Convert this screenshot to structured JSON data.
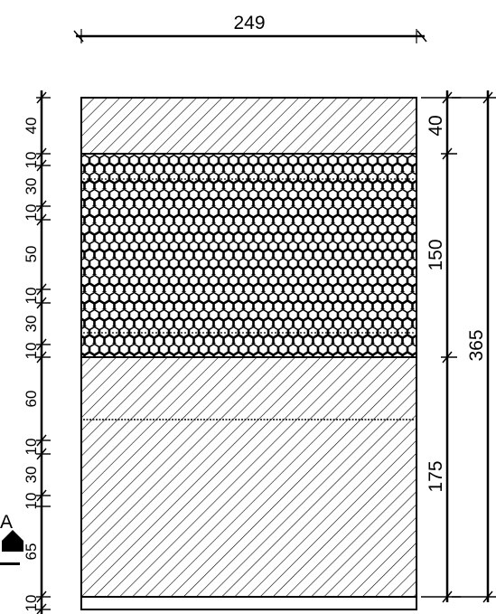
{
  "section_marker": "A",
  "top_dimension": "249",
  "left_dimensions": [
    "40",
    "10",
    "30",
    "10",
    "50",
    "10",
    "30",
    "10",
    "60",
    "10",
    "30",
    "10",
    "65",
    "10"
  ],
  "right_inner_dimensions": [
    "40",
    "150",
    "175"
  ],
  "right_total_dimension": "365",
  "colors": {
    "line": "#000000",
    "background": "#ffffff"
  }
}
